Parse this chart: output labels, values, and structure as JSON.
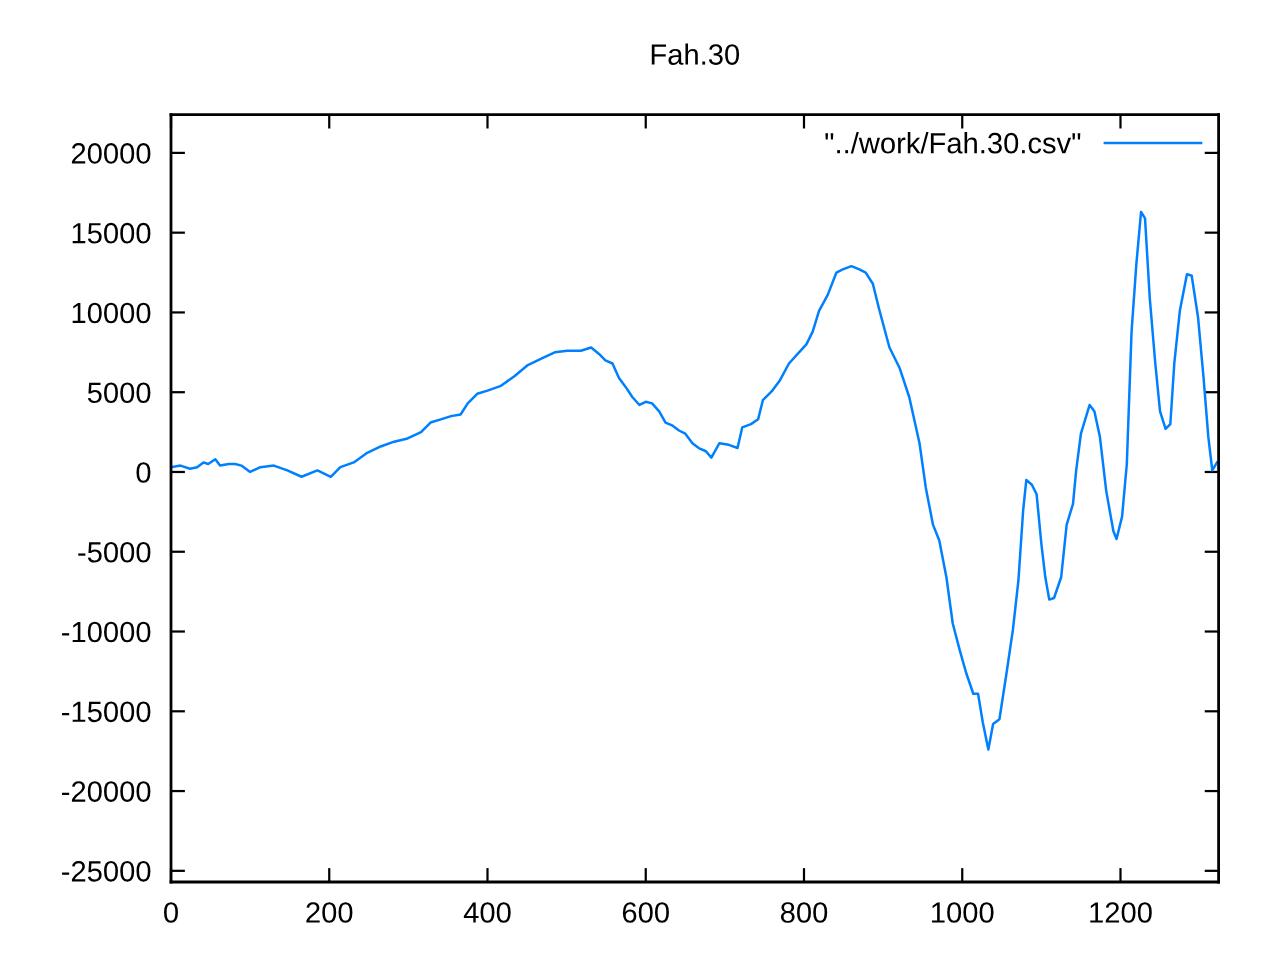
{
  "chart_data": {
    "type": "line",
    "title": "Fah.30",
    "x": [
      0,
      12,
      24,
      33,
      41,
      47,
      56,
      62,
      73,
      81,
      89,
      100,
      113,
      130,
      147,
      165,
      185,
      202,
      214,
      231,
      248,
      265,
      282,
      299,
      316,
      328,
      341,
      354,
      366,
      375,
      387,
      400,
      417,
      434,
      451,
      468,
      485,
      501,
      518,
      531,
      541,
      549,
      558,
      566,
      575,
      583,
      592,
      600,
      608,
      617,
      625,
      634,
      642,
      650,
      659,
      667,
      676,
      683,
      693,
      705,
      716,
      722,
      733,
      742,
      748,
      760,
      769,
      781,
      792,
      803,
      811,
      819,
      830,
      841,
      849,
      860,
      870,
      878,
      887,
      895,
      908,
      921,
      933,
      946,
      954,
      963,
      971,
      980,
      988,
      997,
      1005,
      1014,
      1020,
      1026,
      1033,
      1039,
      1047,
      1056,
      1064,
      1071,
      1077,
      1081,
      1088,
      1094,
      1100,
      1105,
      1110,
      1116,
      1125,
      1132,
      1140,
      1144,
      1150,
      1161,
      1167,
      1174,
      1182,
      1191,
      1195,
      1202,
      1208,
      1214,
      1220,
      1226,
      1231,
      1237,
      1244,
      1250,
      1257,
      1263,
      1268,
      1275,
      1284,
      1290,
      1298,
      1305,
      1311,
      1316,
      1322
    ],
    "series": [
      {
        "name": "\"../work/Fah.30.csv\"",
        "color": "#0080ff",
        "values": [
          300,
          400,
          200,
          300,
          600,
          500,
          800,
          400,
          500,
          500,
          400,
          0,
          300,
          400,
          100,
          -300,
          100,
          -300,
          300,
          600,
          1200,
          1600,
          1900,
          2100,
          2500,
          3100,
          3300,
          3500,
          3600,
          4300,
          4900,
          5100,
          5400,
          6000,
          6700,
          7100,
          7500,
          7600,
          7600,
          7800,
          7400,
          7000,
          6800,
          5900,
          5300,
          4700,
          4200,
          4400,
          4300,
          3800,
          3100,
          2900,
          2600,
          2400,
          1800,
          1500,
          1300,
          900,
          1800,
          1700,
          1500,
          2800,
          3000,
          3300,
          4500,
          5100,
          5700,
          6800,
          7400,
          8000,
          8800,
          10100,
          11100,
          12500,
          12700,
          12900,
          12700,
          12500,
          11800,
          10200,
          7800,
          6500,
          4700,
          1800,
          -1000,
          -3300,
          -4300,
          -6600,
          -9500,
          -11200,
          -12600,
          -13900,
          -13900,
          -15700,
          -17400,
          -15800,
          -15500,
          -12600,
          -9900,
          -6800,
          -2400,
          -500,
          -800,
          -1400,
          -4500,
          -6600,
          -8000,
          -7900,
          -6600,
          -3300,
          -2000,
          100,
          2400,
          4200,
          3800,
          2200,
          -1200,
          -3700,
          -4200,
          -2800,
          500,
          8800,
          13000,
          16300,
          15900,
          10900,
          6800,
          3800,
          2700,
          3000,
          6800,
          10100,
          12400,
          12300,
          9700,
          5900,
          2200,
          100,
          600
        ]
      }
    ],
    "xlim": [
      0,
      1324
    ],
    "ylim": [
      -25700,
      22400
    ],
    "xticks": [
      0,
      200,
      400,
      600,
      800,
      1000,
      1200
    ],
    "yticks": [
      -25000,
      -20000,
      -15000,
      -10000,
      -5000,
      0,
      5000,
      10000,
      15000,
      20000
    ],
    "legend": "top right",
    "grid": false
  }
}
